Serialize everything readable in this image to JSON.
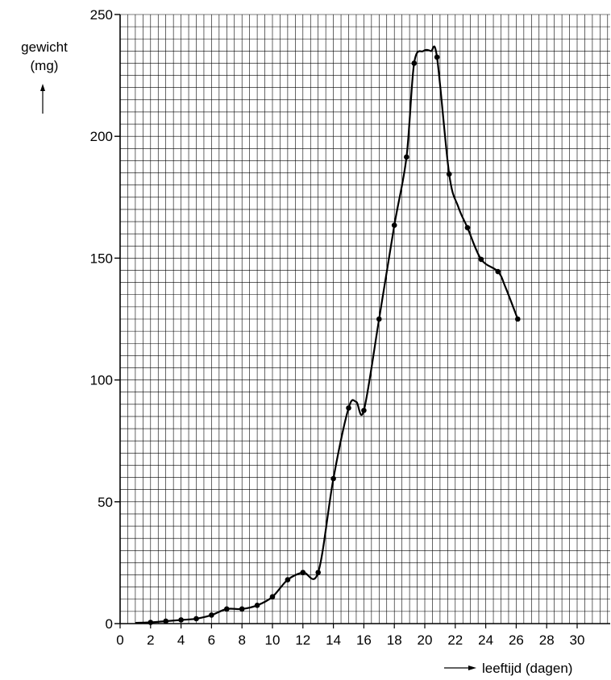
{
  "chart_data": {
    "type": "line",
    "ylabel_line1": "gewicht",
    "ylabel_line2": "(mg)",
    "xlabel": "leeftijd (dagen)",
    "xlim": [
      0,
      32
    ],
    "ylim": [
      0,
      250
    ],
    "grid": true,
    "x_ticks": [
      0,
      2,
      4,
      6,
      8,
      10,
      12,
      14,
      16,
      18,
      20,
      22,
      24,
      26,
      28,
      30
    ],
    "y_ticks": [
      0,
      50,
      100,
      150,
      200,
      250
    ],
    "marked_points": {
      "x": [
        2,
        3,
        4,
        5,
        6,
        7,
        8,
        9,
        10,
        11,
        12,
        13,
        14,
        15,
        16,
        17,
        18,
        18.8,
        19.3,
        20.8,
        21.6,
        22.8,
        23.7,
        24.8,
        26.1
      ],
      "y": [
        0.5,
        1,
        1.5,
        2,
        3.5,
        6,
        6,
        7.5,
        11,
        18,
        21,
        21,
        59.5,
        88.5,
        87.5,
        125,
        163.5,
        191.5,
        230,
        232.5,
        184.5,
        162.5,
        149.5,
        144.5,
        125
      ]
    },
    "curve": {
      "x": [
        1,
        2,
        3,
        4,
        5,
        6,
        7,
        8,
        9,
        10,
        11,
        12,
        13,
        14,
        15,
        15.5,
        16,
        17,
        18,
        18.8,
        19.3,
        19.9,
        20.4,
        20.8,
        21.6,
        22.2,
        22.8,
        23.7,
        24.8,
        25.3,
        26.1
      ],
      "y": [
        0.3,
        0.5,
        1,
        1.5,
        2,
        3.5,
        6,
        6,
        7.5,
        11,
        18,
        21,
        21,
        59.5,
        88.5,
        91,
        87.5,
        125,
        163.5,
        191.5,
        230,
        235,
        235,
        232.5,
        184.5,
        171,
        162.5,
        149.5,
        144.5,
        138,
        125
      ]
    }
  }
}
